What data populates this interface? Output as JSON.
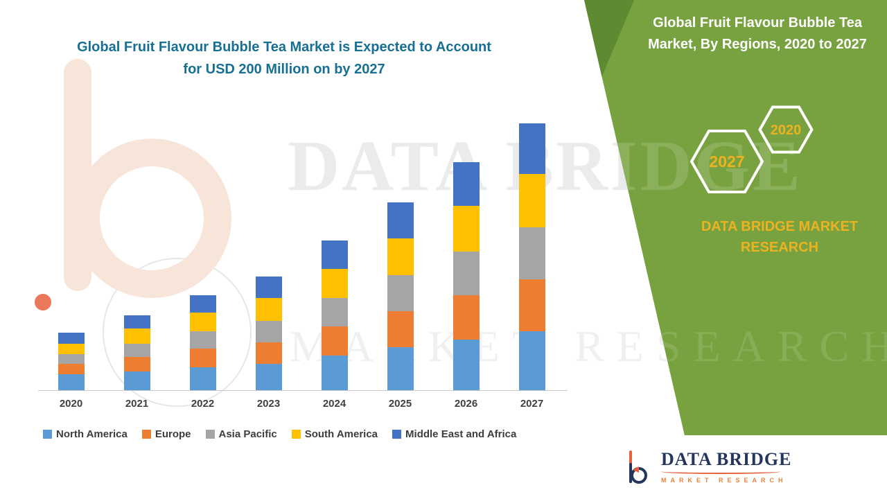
{
  "left": {
    "title_line1": "Global Fruit Flavour Bubble Tea Market is Expected to Account",
    "title_line2": "for USD 200 Million on by 2027"
  },
  "right_panel": {
    "heading": "Global Fruit Flavour Bubble Tea Market, By Regions, 2020 to 2027",
    "hexagon_back_label": "2020",
    "hexagon_front_label": "2027",
    "company_name": "DATA BRIDGE MARKET RESEARCH",
    "background_color": "#78a23f",
    "accent_text_color": "#ecb220"
  },
  "watermark": {
    "line1": "DATA BRIDGE",
    "line2": "MARKET RESEARCH"
  },
  "logo_card": {
    "brand": "DATA BRIDGE",
    "tagline": "MARKET RESEARCH"
  },
  "chart_data": {
    "type": "bar",
    "stacked": true,
    "title": "Global Fruit Flavour Bubble Tea Market, By Regions, 2020 to 2027",
    "unit": "USD Million",
    "categories": [
      "2020",
      "2021",
      "2022",
      "2023",
      "2024",
      "2025",
      "2026",
      "2027"
    ],
    "series": [
      {
        "name": "North America",
        "color": "#5b9bd5",
        "values": [
          12,
          14,
          17,
          20,
          26,
          32,
          38,
          44
        ]
      },
      {
        "name": "Europe",
        "color": "#ed7d31",
        "values": [
          8,
          11,
          14,
          16,
          22,
          27,
          33,
          39
        ]
      },
      {
        "name": "Asia Pacific",
        "color": "#a5a5a5",
        "values": [
          7,
          10,
          13,
          16,
          21,
          27,
          33,
          39
        ]
      },
      {
        "name": "South America",
        "color": "#ffc000",
        "values": [
          8,
          11,
          14,
          17,
          22,
          28,
          34,
          40
        ]
      },
      {
        "name": "Middle East and Africa",
        "color": "#4472c4",
        "values": [
          8,
          10,
          13,
          16,
          21,
          27,
          33,
          38
        ]
      }
    ],
    "totals": [
      43,
      56,
      71,
      85,
      112,
      141,
      171,
      200
    ],
    "ylim": [
      0,
      200
    ],
    "grid": false,
    "legend_position": "bottom",
    "axis_labels_visible": false
  }
}
